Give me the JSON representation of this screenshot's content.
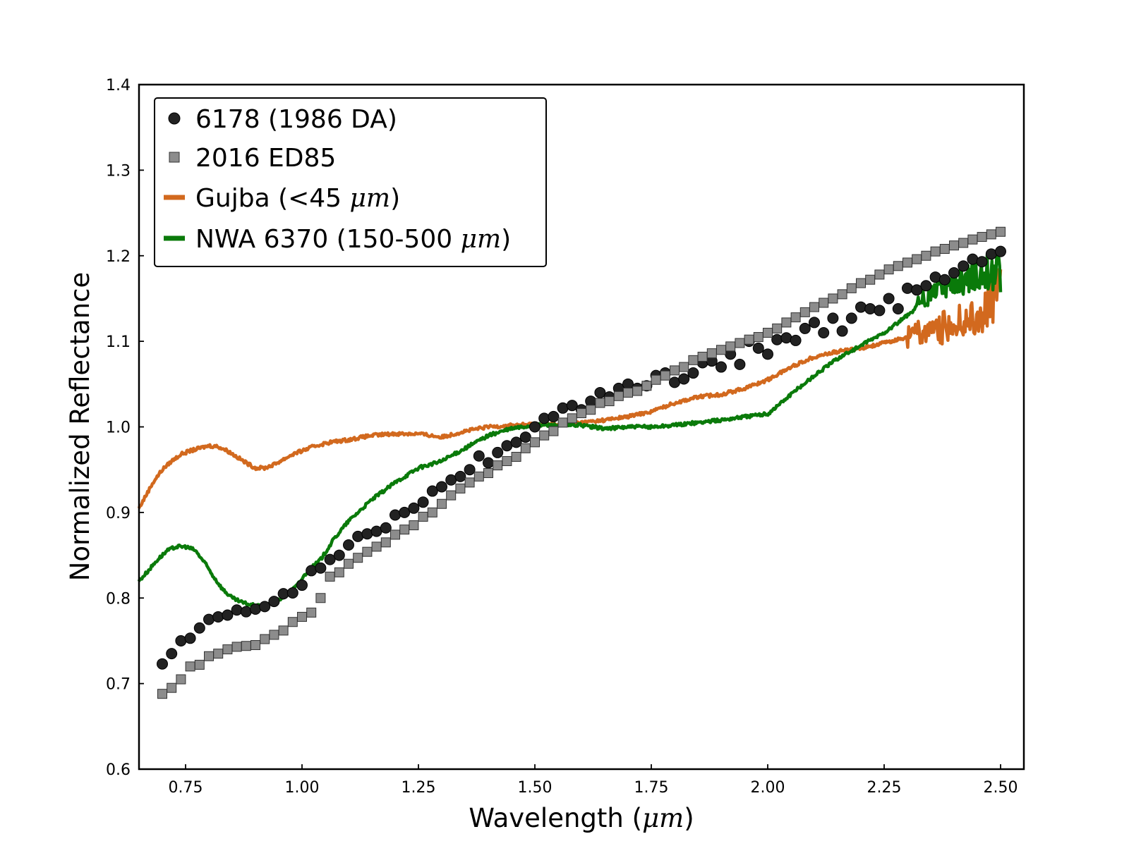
{
  "chart_data": {
    "type": "scatter",
    "title": "",
    "xlabel": "Wavelength",
    "xlabel_unit": "μm",
    "ylabel": "Normalized Reflectance",
    "xlim": [
      0.65,
      2.55
    ],
    "ylim": [
      0.6,
      1.4
    ],
    "xticks": [
      "0.75",
      "1.00",
      "1.25",
      "1.50",
      "1.75",
      "2.00",
      "2.25",
      "2.50"
    ],
    "yticks": [
      "0.6",
      "0.7",
      "0.8",
      "0.9",
      "1.0",
      "1.1",
      "1.2",
      "1.3",
      "1.4"
    ],
    "legend_position": "top-left",
    "series": [
      {
        "name": "6178 (1986 DA)",
        "label_main": "6178 (1986 DA)",
        "label_unit": "",
        "label_tail": "",
        "marker": "circle",
        "color": "#222222",
        "x": [
          0.7,
          0.72,
          0.74,
          0.76,
          0.78,
          0.8,
          0.82,
          0.84,
          0.86,
          0.88,
          0.9,
          0.92,
          0.94,
          0.96,
          0.98,
          1.0,
          1.02,
          1.04,
          1.06,
          1.08,
          1.1,
          1.12,
          1.14,
          1.16,
          1.18,
          1.2,
          1.22,
          1.24,
          1.26,
          1.28,
          1.3,
          1.32,
          1.34,
          1.36,
          1.38,
          1.4,
          1.42,
          1.44,
          1.46,
          1.48,
          1.5,
          1.52,
          1.54,
          1.56,
          1.58,
          1.6,
          1.62,
          1.64,
          1.66,
          1.68,
          1.7,
          1.72,
          1.74,
          1.76,
          1.78,
          1.8,
          1.82,
          1.84,
          1.86,
          1.88,
          1.9,
          1.92,
          1.94,
          1.96,
          1.98,
          2.0,
          2.02,
          2.04,
          2.06,
          2.08,
          2.1,
          2.12,
          2.14,
          2.16,
          2.18,
          2.2,
          2.22,
          2.24,
          2.26,
          2.28,
          2.3,
          2.32,
          2.34,
          2.36,
          2.38,
          2.4,
          2.42,
          2.44,
          2.46,
          2.48,
          2.5
        ],
        "y": [
          0.723,
          0.735,
          0.75,
          0.753,
          0.765,
          0.775,
          0.778,
          0.78,
          0.786,
          0.784,
          0.787,
          0.79,
          0.796,
          0.805,
          0.806,
          0.815,
          0.832,
          0.835,
          0.845,
          0.85,
          0.862,
          0.872,
          0.875,
          0.878,
          0.882,
          0.897,
          0.9,
          0.905,
          0.912,
          0.925,
          0.93,
          0.938,
          0.942,
          0.95,
          0.966,
          0.958,
          0.97,
          0.978,
          0.982,
          0.988,
          1.0,
          1.01,
          1.012,
          1.022,
          1.025,
          1.02,
          1.03,
          1.04,
          1.035,
          1.045,
          1.05,
          1.045,
          1.048,
          1.06,
          1.063,
          1.052,
          1.056,
          1.063,
          1.075,
          1.077,
          1.07,
          1.085,
          1.073,
          1.1,
          1.092,
          1.085,
          1.102,
          1.104,
          1.101,
          1.115,
          1.122,
          1.11,
          1.127,
          1.112,
          1.127,
          1.14,
          1.138,
          1.136,
          1.15,
          1.138,
          1.162,
          1.16,
          1.165,
          1.175,
          1.172,
          1.18,
          1.188,
          1.196,
          1.193,
          1.202,
          1.205
        ]
      },
      {
        "name": "2016 ED85",
        "label_main": "2016 ED85",
        "label_unit": "",
        "label_tail": "",
        "marker": "square",
        "color": "#8c8c8c",
        "x": [
          0.7,
          0.72,
          0.74,
          0.76,
          0.78,
          0.8,
          0.82,
          0.84,
          0.86,
          0.88,
          0.9,
          0.92,
          0.94,
          0.96,
          0.98,
          1.0,
          1.02,
          1.04,
          1.06,
          1.08,
          1.1,
          1.12,
          1.14,
          1.16,
          1.18,
          1.2,
          1.22,
          1.24,
          1.26,
          1.28,
          1.3,
          1.32,
          1.34,
          1.36,
          1.38,
          1.4,
          1.42,
          1.44,
          1.46,
          1.48,
          1.5,
          1.52,
          1.54,
          1.56,
          1.58,
          1.6,
          1.62,
          1.64,
          1.66,
          1.68,
          1.7,
          1.72,
          1.74,
          1.76,
          1.78,
          1.8,
          1.82,
          1.84,
          1.86,
          1.88,
          1.9,
          1.92,
          1.94,
          1.96,
          1.98,
          2.0,
          2.02,
          2.04,
          2.06,
          2.08,
          2.1,
          2.12,
          2.14,
          2.16,
          2.18,
          2.2,
          2.22,
          2.24,
          2.26,
          2.28,
          2.3,
          2.32,
          2.34,
          2.36,
          2.38,
          2.4,
          2.42,
          2.44,
          2.46,
          2.48,
          2.5
        ],
        "y": [
          0.688,
          0.695,
          0.705,
          0.72,
          0.722,
          0.732,
          0.735,
          0.74,
          0.743,
          0.744,
          0.745,
          0.752,
          0.757,
          0.762,
          0.772,
          0.778,
          0.783,
          0.8,
          0.825,
          0.83,
          0.84,
          0.847,
          0.854,
          0.86,
          0.865,
          0.874,
          0.88,
          0.885,
          0.895,
          0.9,
          0.91,
          0.92,
          0.928,
          0.935,
          0.942,
          0.946,
          0.955,
          0.96,
          0.965,
          0.975,
          0.982,
          0.99,
          0.995,
          1.005,
          1.01,
          1.016,
          1.02,
          1.028,
          1.03,
          1.036,
          1.04,
          1.042,
          1.048,
          1.055,
          1.06,
          1.066,
          1.07,
          1.078,
          1.082,
          1.086,
          1.09,
          1.094,
          1.098,
          1.102,
          1.105,
          1.11,
          1.115,
          1.122,
          1.128,
          1.134,
          1.14,
          1.145,
          1.15,
          1.155,
          1.162,
          1.168,
          1.172,
          1.178,
          1.184,
          1.188,
          1.192,
          1.196,
          1.2,
          1.205,
          1.208,
          1.212,
          1.215,
          1.219,
          1.222,
          1.225,
          1.228
        ]
      },
      {
        "name": "Gujba (<45 μm)",
        "label_main": "Gujba (<45 ",
        "label_unit": "μm",
        "label_tail": ")",
        "marker": "line",
        "color": "#d2691e",
        "x": [
          0.65,
          0.66,
          0.68,
          0.7,
          0.72,
          0.74,
          0.76,
          0.78,
          0.8,
          0.82,
          0.84,
          0.86,
          0.88,
          0.9,
          0.92,
          0.94,
          0.96,
          0.98,
          1.0,
          1.03,
          1.06,
          1.1,
          1.15,
          1.2,
          1.25,
          1.3,
          1.35,
          1.4,
          1.45,
          1.5,
          1.55,
          1.6,
          1.65,
          1.7,
          1.75,
          1.8,
          1.85,
          1.9,
          1.95,
          2.0,
          2.05,
          2.1,
          2.15,
          2.2,
          2.25,
          2.3,
          2.35,
          2.4,
          2.45,
          2.5
        ],
        "y": [
          0.905,
          0.915,
          0.935,
          0.95,
          0.96,
          0.968,
          0.972,
          0.975,
          0.978,
          0.977,
          0.972,
          0.965,
          0.958,
          0.952,
          0.952,
          0.956,
          0.962,
          0.968,
          0.972,
          0.978,
          0.982,
          0.985,
          0.99,
          0.992,
          0.992,
          0.988,
          0.995,
          1.0,
          1.002,
          1.003,
          1.003,
          1.005,
          1.008,
          1.012,
          1.018,
          1.028,
          1.035,
          1.038,
          1.045,
          1.055,
          1.07,
          1.082,
          1.088,
          1.092,
          1.098,
          1.105,
          1.115,
          1.12,
          1.125,
          1.16
        ],
        "noise_from_x": 2.3,
        "noise_amplitude": 0.03
      },
      {
        "name": "NWA 6370 (150-500 μm)",
        "label_main": "NWA 6370 (150-500 ",
        "label_unit": "μm",
        "label_tail": ")",
        "marker": "line",
        "color": "#0a7a0a",
        "x": [
          0.65,
          0.67,
          0.69,
          0.71,
          0.73,
          0.75,
          0.77,
          0.79,
          0.81,
          0.83,
          0.85,
          0.87,
          0.89,
          0.91,
          0.93,
          0.95,
          0.97,
          0.99,
          1.01,
          1.04,
          1.07,
          1.1,
          1.15,
          1.2,
          1.25,
          1.3,
          1.35,
          1.4,
          1.45,
          1.5,
          1.55,
          1.6,
          1.65,
          1.7,
          1.75,
          1.8,
          1.85,
          1.9,
          1.95,
          2.0,
          2.05,
          2.1,
          2.15,
          2.2,
          2.25,
          2.3,
          2.35,
          2.4,
          2.45,
          2.5
        ],
        "y": [
          0.82,
          0.832,
          0.845,
          0.855,
          0.86,
          0.86,
          0.856,
          0.842,
          0.825,
          0.81,
          0.8,
          0.795,
          0.792,
          0.79,
          0.792,
          0.798,
          0.805,
          0.815,
          0.83,
          0.845,
          0.87,
          0.89,
          0.915,
          0.935,
          0.952,
          0.96,
          0.975,
          0.99,
          0.998,
          1.002,
          1.002,
          1.002,
          0.998,
          1.0,
          1.0,
          1.002,
          1.005,
          1.008,
          1.012,
          1.015,
          1.038,
          1.06,
          1.08,
          1.095,
          1.11,
          1.13,
          1.155,
          1.17,
          1.175,
          1.18
        ],
        "noise_from_x": 2.32,
        "noise_amplitude": 0.025
      }
    ]
  }
}
